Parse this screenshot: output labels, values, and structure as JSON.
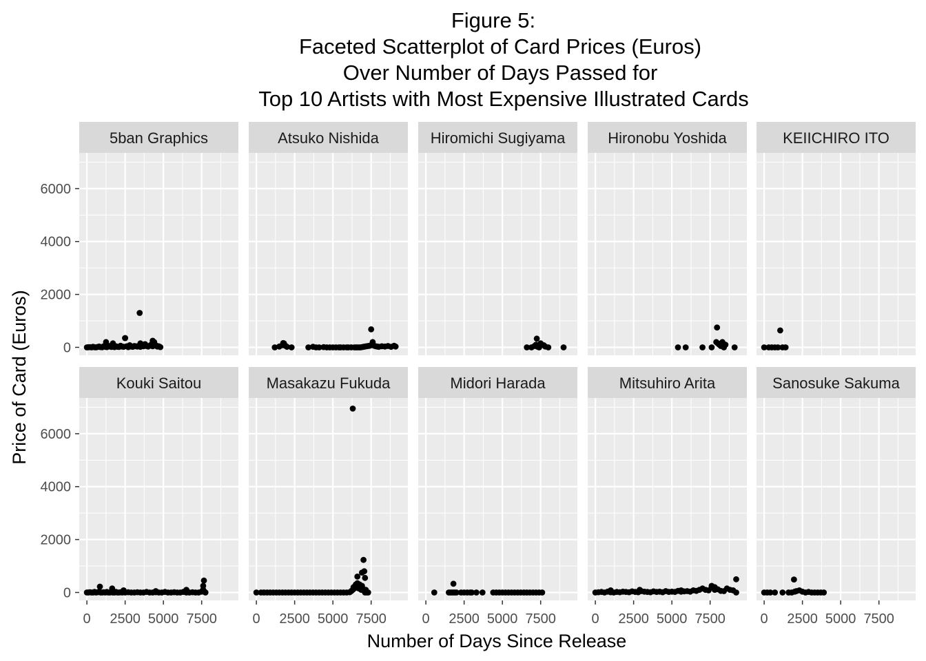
{
  "chart_data": {
    "type": "scatter",
    "title_lines": [
      "Figure 5:",
      "Faceted Scatterplot of Card Prices (Euros)",
      "Over Number of Days Passed for",
      "Top 10 Artists with Most Expensive Illustrated Cards"
    ],
    "xlabel": "Number of Days Since Release",
    "ylabel": "Price of Card (Euros)",
    "xlim": [
      -500,
      9900
    ],
    "ylim": [
      -300,
      7350
    ],
    "x_ticks": [
      0,
      2500,
      5000,
      7500
    ],
    "x_tick_labels": [
      "0",
      "2500",
      "5000",
      "7500"
    ],
    "y_ticks": [
      0,
      2000,
      4000,
      6000
    ],
    "y_tick_labels": [
      "0",
      "2000",
      "4000",
      "6000"
    ],
    "grid": true,
    "facet_layout": {
      "rows": 2,
      "cols": 5
    },
    "panel_background": "#ebebeb",
    "strip_background": "#d9d9d9",
    "point_color": "#000000",
    "facets": [
      {
        "name": "5ban Graphics",
        "x": [
          0,
          100,
          200,
          300,
          400,
          500,
          600,
          700,
          800,
          900,
          1000,
          1100,
          1200,
          1300,
          1400,
          1500,
          1600,
          1700,
          1800,
          1900,
          2000,
          2100,
          2200,
          2300,
          2400,
          2500,
          2600,
          2700,
          2800,
          2900,
          3000,
          3100,
          3200,
          3300,
          3400,
          3500,
          3600,
          3700,
          3800,
          3900,
          4000,
          4100,
          4200,
          4300,
          4400,
          4500,
          4600,
          4700,
          4800,
          1250,
          1700,
          2500,
          3500,
          3800,
          4300,
          3450
        ],
        "y": [
          0,
          5,
          10,
          0,
          20,
          5,
          0,
          15,
          30,
          10,
          5,
          40,
          20,
          10,
          30,
          50,
          15,
          25,
          10,
          40,
          20,
          15,
          60,
          30,
          20,
          350,
          40,
          10,
          80,
          30,
          20,
          50,
          40,
          30,
          60,
          20,
          90,
          40,
          120,
          50,
          30,
          60,
          100,
          40,
          200,
          80,
          30,
          40,
          10,
          200,
          150,
          350,
          150,
          120,
          250,
          1300
        ]
      },
      {
        "name": "Atsuko Nishida",
        "x": [
          1200,
          1500,
          1700,
          1800,
          1900,
          2000,
          2300,
          3400,
          3700,
          3900,
          4100,
          4400,
          4600,
          4800,
          5000,
          5200,
          5400,
          5500,
          5700,
          5900,
          6000,
          6200,
          6400,
          6500,
          6600,
          6700,
          6800,
          6900,
          7000,
          7100,
          7200,
          7300,
          7400,
          7500,
          7600,
          7700,
          7800,
          7900,
          8000,
          8200,
          8400,
          8600,
          8800,
          9000,
          9100,
          7500,
          7600,
          1750
        ],
        "y": [
          0,
          30,
          80,
          150,
          60,
          20,
          0,
          0,
          20,
          0,
          0,
          10,
          0,
          0,
          0,
          0,
          0,
          0,
          0,
          0,
          0,
          0,
          0,
          0,
          0,
          0,
          0,
          10,
          20,
          30,
          40,
          50,
          60,
          80,
          100,
          60,
          40,
          30,
          20,
          40,
          30,
          50,
          20,
          60,
          30,
          680,
          200,
          160
        ]
      },
      {
        "name": "Hiromichi Sugiyama",
        "x": [
          6600,
          6900,
          7100,
          7200,
          7300,
          7400,
          7500,
          7700,
          7800,
          8000,
          9000,
          7250
        ],
        "y": [
          0,
          0,
          50,
          100,
          20,
          0,
          150,
          80,
          30,
          0,
          0,
          330
        ]
      },
      {
        "name": "Hironobu Yoshida",
        "x": [
          5400,
          5900,
          7000,
          7600,
          7900,
          8000,
          8100,
          8200,
          8300,
          8400,
          8500,
          9100,
          7950
        ],
        "y": [
          0,
          0,
          0,
          0,
          200,
          150,
          100,
          50,
          200,
          0,
          100,
          0,
          750
        ]
      },
      {
        "name": "KEIICHIRO ITO",
        "x": [
          0,
          300,
          500,
          700,
          900,
          1200,
          1400,
          1050
        ],
        "y": [
          0,
          0,
          0,
          0,
          0,
          0,
          0,
          640
        ]
      },
      {
        "name": "Kouki Saitou",
        "x": [
          0,
          100,
          200,
          300,
          400,
          500,
          600,
          700,
          800,
          900,
          1000,
          1100,
          1200,
          1300,
          1400,
          1500,
          1600,
          1700,
          1800,
          1900,
          2000,
          2100,
          2200,
          2300,
          2500,
          2700,
          2900,
          3100,
          3300,
          3500,
          3700,
          3900,
          4100,
          4300,
          4500,
          4700,
          4900,
          5100,
          5300,
          5500,
          5700,
          5900,
          6100,
          6300,
          6500,
          6700,
          6900,
          7100,
          7300,
          7500,
          7550,
          7600,
          7650,
          7700,
          7750,
          7600,
          7650,
          850,
          1650,
          2400,
          4500,
          6500
        ],
        "y": [
          0,
          0,
          10,
          0,
          0,
          20,
          0,
          10,
          30,
          0,
          0,
          10,
          0,
          20,
          0,
          0,
          10,
          0,
          0,
          20,
          0,
          0,
          10,
          0,
          0,
          10,
          0,
          0,
          10,
          0,
          0,
          20,
          0,
          0,
          10,
          0,
          0,
          20,
          0,
          0,
          10,
          0,
          0,
          20,
          0,
          0,
          10,
          0,
          0,
          30,
          60,
          100,
          50,
          20,
          0,
          250,
          450,
          220,
          150,
          80,
          50,
          100
        ]
      },
      {
        "name": "Masakazu Fukuda",
        "x": [
          0,
          300,
          500,
          700,
          900,
          1100,
          1300,
          1500,
          1700,
          1900,
          2100,
          2300,
          2500,
          2700,
          2900,
          3100,
          3300,
          3500,
          3700,
          3900,
          4100,
          4300,
          4500,
          4700,
          4900,
          5100,
          5300,
          5500,
          5700,
          5900,
          6100,
          6200,
          6300,
          6350,
          6400,
          6450,
          6500,
          6550,
          6600,
          6650,
          6700,
          6750,
          6800,
          6850,
          6900,
          6950,
          7000,
          7050,
          7100,
          7150,
          7200,
          7300,
          6600,
          6900,
          7000,
          7050,
          7100,
          6300
        ],
        "y": [
          0,
          0,
          0,
          0,
          0,
          0,
          0,
          0,
          0,
          0,
          0,
          0,
          0,
          0,
          0,
          0,
          0,
          0,
          0,
          0,
          0,
          0,
          0,
          0,
          0,
          0,
          0,
          0,
          0,
          0,
          10,
          50,
          100,
          200,
          150,
          250,
          300,
          200,
          350,
          250,
          150,
          300,
          200,
          100,
          250,
          150,
          100,
          50,
          0,
          100,
          0,
          0,
          600,
          750,
          1230,
          800,
          550,
          6950
        ]
      },
      {
        "name": "Midori Harada",
        "x": [
          550,
          1500,
          1600,
          1700,
          1800,
          1900,
          2000,
          2300,
          2500,
          2700,
          2900,
          3000,
          3300,
          3700,
          4400,
          4600,
          4800,
          5000,
          5200,
          5400,
          5600,
          5800,
          6000,
          6200,
          6400,
          6600,
          6800,
          7000,
          7200,
          7400,
          7600,
          1800
        ],
        "y": [
          0,
          0,
          0,
          0,
          0,
          0,
          0,
          0,
          0,
          0,
          0,
          0,
          0,
          0,
          0,
          0,
          0,
          0,
          0,
          0,
          0,
          0,
          0,
          0,
          0,
          0,
          0,
          0,
          0,
          0,
          0,
          330
        ]
      },
      {
        "name": "Mitsuhiro Arita",
        "x": [
          0,
          200,
          400,
          600,
          800,
          1000,
          1200,
          1400,
          1600,
          1800,
          2000,
          2200,
          2400,
          2600,
          2800,
          3000,
          3200,
          3400,
          3600,
          3800,
          4000,
          4200,
          4400,
          4600,
          4800,
          5000,
          5200,
          5400,
          5600,
          5800,
          6000,
          6200,
          6400,
          6600,
          6800,
          7000,
          7200,
          7400,
          7600,
          7800,
          8000,
          8200,
          8400,
          8600,
          8800,
          9000,
          9200,
          7600,
          7800,
          1000,
          2900,
          5600,
          9200
        ],
        "y": [
          0,
          10,
          20,
          0,
          30,
          10,
          0,
          20,
          10,
          30,
          20,
          10,
          40,
          20,
          10,
          50,
          30,
          20,
          10,
          40,
          20,
          30,
          10,
          50,
          20,
          30,
          20,
          60,
          30,
          40,
          50,
          30,
          80,
          60,
          100,
          150,
          100,
          80,
          200,
          100,
          120,
          60,
          50,
          150,
          100,
          80,
          0,
          250,
          200,
          80,
          100,
          80,
          500
        ]
      },
      {
        "name": "Sanosuke Sakuma",
        "x": [
          0,
          200,
          400,
          700,
          1200,
          1600,
          1800,
          2000,
          2100,
          2300,
          2500,
          2700,
          2900,
          3100,
          3300,
          3500,
          3700,
          3900,
          1950
        ],
        "y": [
          0,
          0,
          0,
          0,
          0,
          0,
          0,
          30,
          50,
          80,
          30,
          0,
          20,
          0,
          0,
          0,
          0,
          0,
          490
        ]
      }
    ]
  }
}
